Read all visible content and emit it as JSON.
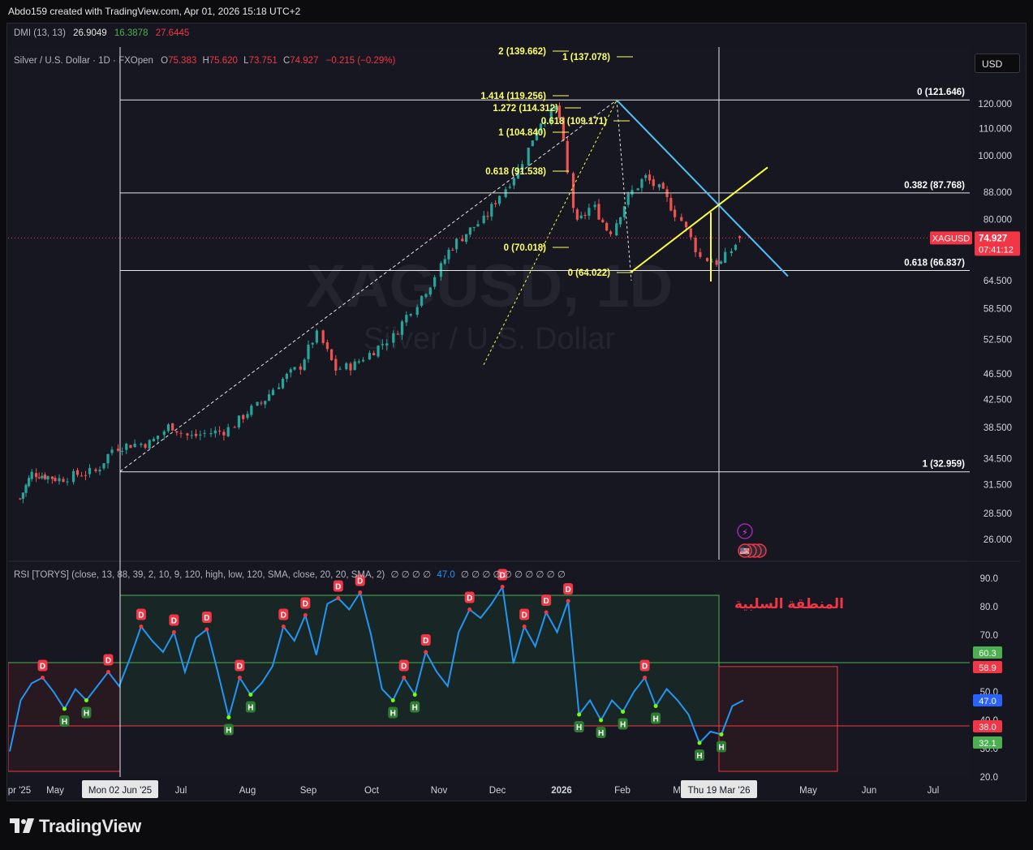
{
  "header": {
    "credit": "Abdo159 created with TradingView.com, Apr 01, 2026 15:18 UTC+2"
  },
  "dmi": {
    "name": "DMI (13, 13)",
    "v1": "26.9049",
    "v2": "16.3878",
    "v3": "27.6445",
    "c1": "#e6e6e6",
    "c2": "#4caf50",
    "c3": "#f23645"
  },
  "symbol": {
    "title": "Silver / U.S. Dollar · 1D · FXOpen",
    "open_label": "O",
    "open": "75.383",
    "high_label": "H",
    "high": "75.620",
    "low_label": "L",
    "low": "73.751",
    "close_label": "C",
    "close": "74.927",
    "change": "−0.215 (−0.29%)",
    "watermark_ticker": "XAGUSD, 1D",
    "watermark_name": "Silver / U.S. Dollar"
  },
  "currency_button": "USD",
  "rsi_legend": {
    "name": "RSI [TORYS] (close, 13, 88, 39, 2, 10, 9, 120, high, low, 120, SMA, close, 20, 20, SMA, 2)",
    "zeros_before": "∅ ∅ ∅ ∅",
    "value": "47.0",
    "zeros_after": "∅ ∅ ∅ ∅ ∅ ∅ ∅ ∅ ∅ ∅"
  },
  "arabic_label": "المنطقة السلبية",
  "brand": "TradingView",
  "chart_data": [
    {
      "type": "candlestick",
      "symbol": "XAGUSD",
      "timeframe": "1D",
      "y_scale": "log",
      "ylim": [
        24.5,
        165
      ],
      "price_ticks": [
        "120.000",
        "110.000",
        "100.000",
        "88.000",
        "80.000",
        "64.500",
        "58.500",
        "52.500",
        "46.500",
        "42.500",
        "38.500",
        "34.500",
        "31.500",
        "28.500",
        "26.000"
      ],
      "x_ticks": [
        "pr '25",
        "May",
        "Mon 02 Jun '25",
        "Jul",
        "Aug",
        "Sep",
        "Oct",
        "Nov",
        "Dec",
        "2026",
        "Feb",
        "M",
        "Thu 19 Mar '26",
        "May",
        "Jun",
        "Jul"
      ],
      "last_price": {
        "symbol": "XAGUSD",
        "value": "74.927",
        "countdown": "07:41:12",
        "y": 74.927
      },
      "approx_closes": [
        {
          "x": "Apr '25",
          "y": 30.0
        },
        {
          "x": "Apr '25",
          "y": 32.8
        },
        {
          "x": "May '25",
          "y": 32.5
        },
        {
          "x": "May '25",
          "y": 32.1
        },
        {
          "x": "May '25",
          "y": 32.7
        },
        {
          "x": "May '25",
          "y": 33.0
        },
        {
          "x": "Jun '25",
          "y": 35.9
        },
        {
          "x": "Jun '25",
          "y": 36.3
        },
        {
          "x": "Jul '25",
          "y": 36.5
        },
        {
          "x": "Jul '25",
          "y": 38.9
        },
        {
          "x": "Jul '25",
          "y": 37.2
        },
        {
          "x": "Aug '25",
          "y": 37.8
        },
        {
          "x": "Aug '25",
          "y": 38.1
        },
        {
          "x": "Sep '25",
          "y": 40.5
        },
        {
          "x": "Sep '25",
          "y": 42.3
        },
        {
          "x": "Sep '25",
          "y": 45.5
        },
        {
          "x": "Oct '25",
          "y": 47.5
        },
        {
          "x": "Oct '25",
          "y": 53.5
        },
        {
          "x": "Oct '25",
          "y": 47.2
        },
        {
          "x": "Nov '25",
          "y": 48.0
        },
        {
          "x": "Nov '25",
          "y": 50.5
        },
        {
          "x": "Nov '25",
          "y": 53.0
        },
        {
          "x": "Dec '25",
          "y": 58.5
        },
        {
          "x": "Dec '25",
          "y": 64.0
        },
        {
          "x": "Dec '25",
          "y": 72.0
        },
        {
          "x": "Dec '25",
          "y": 76.5
        },
        {
          "x": "Jan '26",
          "y": 80.0
        },
        {
          "x": "Jan '26",
          "y": 88.0
        },
        {
          "x": "Jan '26",
          "y": 96.0
        },
        {
          "x": "Jan '26",
          "y": 112.0
        },
        {
          "x": "Jan '26",
          "y": 119.0
        },
        {
          "x": "Feb '26",
          "y": 78.0
        },
        {
          "x": "Feb '26",
          "y": 84.0
        },
        {
          "x": "Feb '26",
          "y": 76.0
        },
        {
          "x": "Feb '26",
          "y": 86.0
        },
        {
          "x": "Feb '26",
          "y": 93.0
        },
        {
          "x": "Mar '26",
          "y": 88.0
        },
        {
          "x": "Mar '26",
          "y": 80.0
        },
        {
          "x": "Mar '26",
          "y": 70.0
        },
        {
          "x": "Mar '26",
          "y": 68.5
        },
        {
          "x": "Mar '26",
          "y": 74.9
        }
      ],
      "fib_retracement": [
        {
          "label": "0 (121.646)",
          "y": 121.646
        },
        {
          "label": "0.382 (87.768)",
          "y": 87.768
        },
        {
          "label": "0.618 (66.837)",
          "y": 66.837
        },
        {
          "label": "1 (32.959)",
          "y": 32.959
        }
      ],
      "fib_extension": [
        {
          "label": "2 (139.662)",
          "y": 139.662
        },
        {
          "label": "1 (137.078)",
          "y": 137.078
        },
        {
          "label": "1.414 (119.256)",
          "y": 119.256
        },
        {
          "label": "1.272 (114.312)",
          "y": 114.312
        },
        {
          "label": "0.618 (109.171)",
          "y": 109.171
        },
        {
          "label": "1 (104.840)",
          "y": 104.84
        },
        {
          "label": "0.618 (91.538)",
          "y": 91.538
        },
        {
          "label": "0 (70.018)",
          "y": 70.018
        },
        {
          "label": "0 (64.022)",
          "y": 64.022
        }
      ],
      "colors": {
        "up": "#26a69a",
        "down": "#ef5350",
        "fib_line": "#e6e6e6",
        "fib_text": "#ffff66",
        "trend_blue": "#4fc3f7",
        "trend_yellow": "#ffff3b"
      }
    },
    {
      "type": "line",
      "name": "RSI [TORYS]",
      "ylim": [
        20,
        95
      ],
      "y_ticks": [
        "90.0",
        "80.0",
        "70.0",
        "50.0",
        "40.0",
        "30.0",
        "20.0"
      ],
      "level_labels": [
        {
          "value": "60.3",
          "color": "#4caf50"
        },
        {
          "value": "58.9",
          "color": "#f23645"
        },
        {
          "value": "47.0",
          "color": "#2962ff"
        },
        {
          "value": "38.0",
          "color": "#f23645"
        },
        {
          "value": "32.1",
          "color": "#4caf50"
        }
      ],
      "values": [
        {
          "x": "Apr '25",
          "y": 29
        },
        {
          "x": "Apr '25",
          "y": 47
        },
        {
          "x": "Apr '25",
          "y": 53
        },
        {
          "x": "May '25",
          "y": 55
        },
        {
          "x": "May '25",
          "y": 50
        },
        {
          "x": "May '25",
          "y": 44
        },
        {
          "x": "May '25",
          "y": 51
        },
        {
          "x": "May '25",
          "y": 47
        },
        {
          "x": "May '25",
          "y": 52
        },
        {
          "x": "May '25",
          "y": 57
        },
        {
          "x": "May '25",
          "y": 52
        },
        {
          "x": "Jun '25",
          "y": 62
        },
        {
          "x": "Jun '25",
          "y": 73
        },
        {
          "x": "Jun '25",
          "y": 68
        },
        {
          "x": "Jun '25",
          "y": 64
        },
        {
          "x": "Jul '25",
          "y": 71
        },
        {
          "x": "Jul '25",
          "y": 57
        },
        {
          "x": "Jul '25",
          "y": 69
        },
        {
          "x": "Jul '25",
          "y": 72
        },
        {
          "x": "Aug '25",
          "y": 57
        },
        {
          "x": "Aug '25",
          "y": 41
        },
        {
          "x": "Aug '25",
          "y": 55
        },
        {
          "x": "Aug '25",
          "y": 49
        },
        {
          "x": "Aug '25",
          "y": 53
        },
        {
          "x": "Sep '25",
          "y": 59
        },
        {
          "x": "Sep '25",
          "y": 73
        },
        {
          "x": "Sep '25",
          "y": 68
        },
        {
          "x": "Sep '25",
          "y": 77
        },
        {
          "x": "Sep '25",
          "y": 63
        },
        {
          "x": "Oct '25",
          "y": 81
        },
        {
          "x": "Oct '25",
          "y": 83
        },
        {
          "x": "Oct '25",
          "y": 79
        },
        {
          "x": "Oct '25",
          "y": 85
        },
        {
          "x": "Oct '25",
          "y": 70
        },
        {
          "x": "Nov '25",
          "y": 51
        },
        {
          "x": "Nov '25",
          "y": 47
        },
        {
          "x": "Nov '25",
          "y": 55
        },
        {
          "x": "Nov '25",
          "y": 49
        },
        {
          "x": "Nov '25",
          "y": 64
        },
        {
          "x": "Nov '25",
          "y": 57
        },
        {
          "x": "Dec '25",
          "y": 52
        },
        {
          "x": "Dec '25",
          "y": 71
        },
        {
          "x": "Dec '25",
          "y": 79
        },
        {
          "x": "Dec '25",
          "y": 76
        },
        {
          "x": "Dec '25",
          "y": 81
        },
        {
          "x": "Dec '25",
          "y": 87
        },
        {
          "x": "Jan '26",
          "y": 60
        },
        {
          "x": "Jan '26",
          "y": 73
        },
        {
          "x": "Jan '26",
          "y": 66
        },
        {
          "x": "Jan '26",
          "y": 78
        },
        {
          "x": "Jan '26",
          "y": 71
        },
        {
          "x": "Jan '26",
          "y": 82
        },
        {
          "x": "Feb '26",
          "y": 42
        },
        {
          "x": "Feb '26",
          "y": 47
        },
        {
          "x": "Feb '26",
          "y": 40
        },
        {
          "x": "Feb '26",
          "y": 47
        },
        {
          "x": "Feb '26",
          "y": 43
        },
        {
          "x": "Feb '26",
          "y": 50
        },
        {
          "x": "Mar '26",
          "y": 55
        },
        {
          "x": "Mar '26",
          "y": 45
        },
        {
          "x": "Mar '26",
          "y": 51
        },
        {
          "x": "Mar '26",
          "y": 47
        },
        {
          "x": "Mar '26",
          "y": 42
        },
        {
          "x": "Mar '26",
          "y": 32
        },
        {
          "x": "Mar '26",
          "y": 36
        },
        {
          "x": "Mar '26",
          "y": 35
        },
        {
          "x": "Mar '26",
          "y": 45
        },
        {
          "x": "Mar '26",
          "y": 47
        }
      ],
      "signals": [
        {
          "kind": "D",
          "label": "D"
        },
        {
          "kind": "H",
          "label": "H"
        }
      ],
      "line_color": "#2196f3"
    }
  ]
}
